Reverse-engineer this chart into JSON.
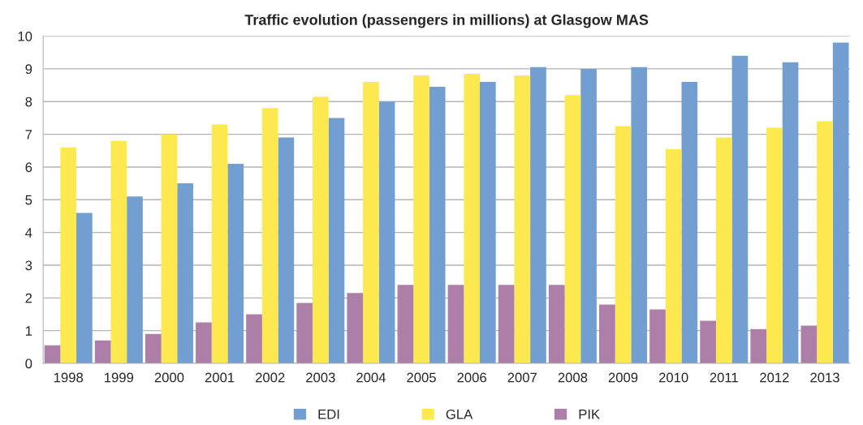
{
  "chart_data": {
    "type": "bar",
    "title": "Traffic evolution (passengers in millions) at Glasgow MAS",
    "categories": [
      "1998",
      "1999",
      "2000",
      "2001",
      "2002",
      "2003",
      "2004",
      "2005",
      "2006",
      "2007",
      "2008",
      "2009",
      "2010",
      "2011",
      "2012",
      "2013"
    ],
    "series": [
      {
        "name": "EDI",
        "color": "#729fcf",
        "values": [
          4.6,
          5.1,
          5.5,
          6.1,
          6.9,
          7.5,
          8.0,
          8.45,
          8.6,
          9.05,
          9.0,
          9.05,
          8.6,
          9.4,
          9.2,
          9.8
        ]
      },
      {
        "name": "GLA",
        "color": "#fce94f",
        "values": [
          6.6,
          6.8,
          7.0,
          7.3,
          7.8,
          8.15,
          8.6,
          8.8,
          8.85,
          8.8,
          8.2,
          7.25,
          6.55,
          6.9,
          7.2,
          7.4
        ]
      },
      {
        "name": "PIK",
        "color": "#ad7fa8",
        "values": [
          0.55,
          0.7,
          0.9,
          1.25,
          1.5,
          1.85,
          2.15,
          2.4,
          2.4,
          2.4,
          2.4,
          1.8,
          1.65,
          1.3,
          1.05,
          1.15
        ]
      }
    ],
    "ylim": [
      0,
      10
    ],
    "yticks": [
      0,
      1,
      2,
      3,
      4,
      5,
      6,
      7,
      8,
      9,
      10
    ],
    "grid": "y",
    "legend": "bottom"
  }
}
